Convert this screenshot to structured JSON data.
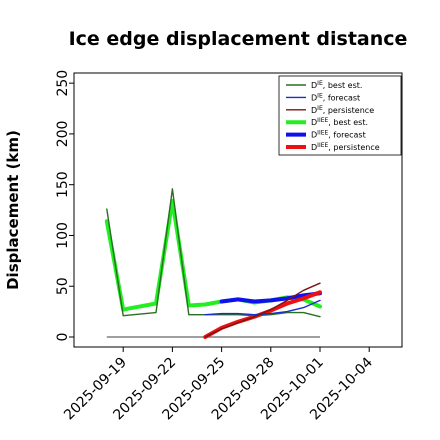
{
  "chart_data": {
    "type": "line",
    "title": "Ice edge displacement distance",
    "xlabel": "",
    "ylabel": "Displacement (km)",
    "x_ticks": [
      "2025-09-19",
      "2025-09-22",
      "2025-09-25",
      "2025-09-28",
      "2025-10-01",
      "2025-10-04"
    ],
    "highlight_tick": "2025-09-25",
    "highlight_color": "#2e8b22",
    "ylim": [
      0,
      260
    ],
    "y_ticks": [
      0,
      50,
      100,
      150,
      200,
      250
    ],
    "xlim": [
      "2025-09-16",
      "2025-10-06"
    ],
    "legend_position": "top-right",
    "grid": false,
    "series": [
      {
        "name": "D^IE, best est.",
        "legend_label": "D",
        "legend_sup": "IE",
        "legend_suffix": ", best est.",
        "color": "#2a6e23",
        "width": 1.4,
        "x": [
          "2025-09-18",
          "2025-09-19",
          "2025-09-21",
          "2025-09-22",
          "2025-09-23",
          "2025-09-24",
          "2025-09-25",
          "2025-09-26",
          "2025-09-27",
          "2025-09-28",
          "2025-09-29",
          "2025-09-30",
          "2025-10-01"
        ],
        "y": [
          126,
          21,
          24,
          146,
          22,
          22,
          22,
          22,
          21,
          22,
          24,
          24,
          20
        ]
      },
      {
        "name": "D^IE, forecast",
        "legend_label": "D",
        "legend_sup": "IE",
        "legend_suffix": ", forecast",
        "color": "#1a2ccc",
        "width": 1.4,
        "x": [
          "2025-09-24",
          "2025-09-25",
          "2025-09-26",
          "2025-09-27",
          "2025-09-28",
          "2025-09-29",
          "2025-09-30",
          "2025-10-01"
        ],
        "y": [
          22,
          23,
          23,
          22,
          23,
          25,
          29,
          36
        ]
      },
      {
        "name": "D^IE, persistence",
        "legend_label": "D",
        "legend_sup": "IE",
        "legend_suffix": ", persistence",
        "color": "#7a1414",
        "width": 1.4,
        "x": [
          "2025-09-24",
          "2025-09-25",
          "2025-09-26",
          "2025-09-27",
          "2025-09-28",
          "2025-09-29",
          "2025-09-30",
          "2025-10-01"
        ],
        "y": [
          0,
          8,
          14,
          20,
          27,
          36,
          46,
          53
        ]
      },
      {
        "name": "D^IIEE, best est.",
        "legend_label": "D",
        "legend_sup": "IIEE",
        "legend_suffix": ", best est.",
        "color": "#22ee22",
        "width": 4,
        "x": [
          "2025-09-18",
          "2025-09-19",
          "2025-09-21",
          "2025-09-22",
          "2025-09-23",
          "2025-09-24",
          "2025-09-25",
          "2025-09-26",
          "2025-09-27",
          "2025-09-28",
          "2025-09-29",
          "2025-09-30",
          "2025-10-01"
        ],
        "y": [
          114,
          27,
          33,
          134,
          31,
          32,
          35,
          37,
          34,
          36,
          39,
          37,
          30
        ]
      },
      {
        "name": "D^IIEE, forecast",
        "legend_label": "D",
        "legend_sup": "IIEE",
        "legend_suffix": ", forecast",
        "color": "#1010ee",
        "width": 4,
        "x": [
          "2025-09-25",
          "2025-09-26",
          "2025-09-27",
          "2025-09-28",
          "2025-09-29",
          "2025-09-30",
          "2025-10-01"
        ],
        "y": [
          35,
          37,
          35,
          36,
          38,
          41,
          43
        ]
      },
      {
        "name": "D^IIEE, persistence",
        "legend_label": "D",
        "legend_sup": "IIEE",
        "legend_suffix": ", persistence",
        "color": "#ee1010",
        "width": 4,
        "x": [
          "2025-09-24",
          "2025-09-25",
          "2025-09-26",
          "2025-09-27",
          "2025-09-28",
          "2025-09-29",
          "2025-09-30",
          "2025-10-01"
        ],
        "y": [
          0,
          9,
          15,
          20,
          26,
          33,
          38,
          44
        ]
      }
    ],
    "baseline": {
      "y": 0,
      "x": [
        "2025-09-18",
        "2025-10-01"
      ],
      "color": "#666666"
    }
  }
}
